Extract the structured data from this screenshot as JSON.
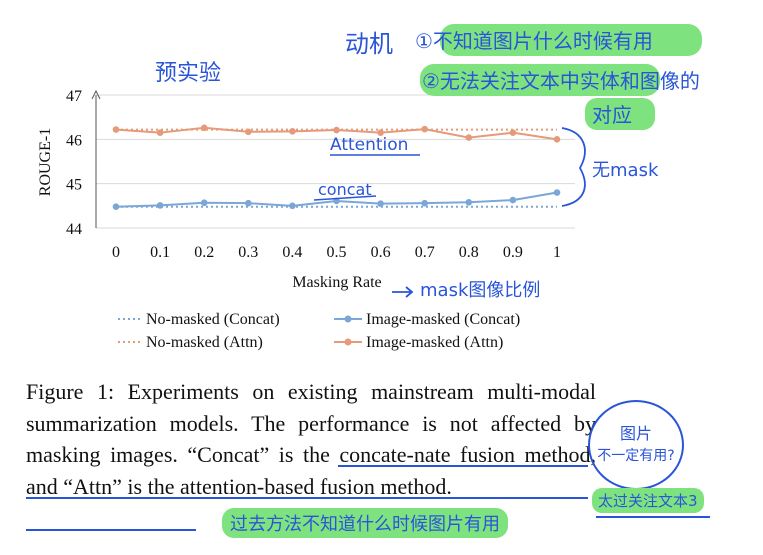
{
  "chart_data": {
    "type": "line",
    "xlabel": "Masking Rate",
    "ylabel": "ROUGE-1",
    "x": [
      0,
      0.1,
      0.2,
      0.3,
      0.4,
      0.5,
      0.6,
      0.7,
      0.8,
      0.9,
      1
    ],
    "x_tick_labels": [
      "0",
      "0.1",
      "0.2",
      "0.3",
      "0.4",
      "0.5",
      "0.6",
      "0.7",
      "0.8",
      "0.9",
      "1"
    ],
    "ylim": [
      44,
      47
    ],
    "y_ticks": [
      44,
      45,
      46,
      47
    ],
    "legend_position": "bottom",
    "series": [
      {
        "name": "No-masked (Concat)",
        "style": "dotted",
        "color": "#7aa6d8",
        "values": [
          44.48,
          44.48,
          44.48,
          44.48,
          44.48,
          44.48,
          44.48,
          44.48,
          44.48,
          44.48,
          44.48
        ]
      },
      {
        "name": "Image-masked (Concat)",
        "style": "solid-marker",
        "color": "#7aa6d8",
        "values": [
          44.48,
          44.51,
          44.57,
          44.56,
          44.5,
          44.61,
          44.55,
          44.56,
          44.58,
          44.63,
          44.8
        ]
      },
      {
        "name": "No-masked (Attn)",
        "style": "dotted",
        "color": "#e59a7a",
        "values": [
          46.22,
          46.22,
          46.22,
          46.22,
          46.22,
          46.22,
          46.22,
          46.22,
          46.22,
          46.22,
          46.22
        ]
      },
      {
        "name": "Image-masked (Attn)",
        "style": "solid-marker",
        "color": "#e59a7a",
        "values": [
          46.22,
          46.15,
          46.26,
          46.17,
          46.18,
          46.21,
          46.15,
          46.23,
          46.04,
          46.15,
          46.0
        ]
      }
    ]
  },
  "caption": {
    "part1": "Figure 1: Experiments on existing mainstream multi-modal summarization models. The performance is not affected by masking images. ",
    "part2": "“Concat” is the concate-nate fusion method, and “Attn” is the attention-based fusion method."
  },
  "annotations": {
    "preexp": "预实验",
    "motivation_label": "动机",
    "motivation_1": "①不知道图片什么时候有用",
    "motivation_2": "②无法关注文本中实体和图像的",
    "motivation_3": "对应",
    "attention": "Attention",
    "concat": "concat",
    "no_mask": "无mask",
    "mask_ratio": "mask图像比例",
    "circle_1": "图片",
    "circle_2": "不一定有用?",
    "right_note": "太过关注文本3",
    "bottom_note": "过去方法不知道什么时候图片有用"
  },
  "colors": {
    "concat": "#7aa6d8",
    "attn": "#e59a7a",
    "ink": "#2a55d8",
    "highlight": "#7ee37e"
  }
}
